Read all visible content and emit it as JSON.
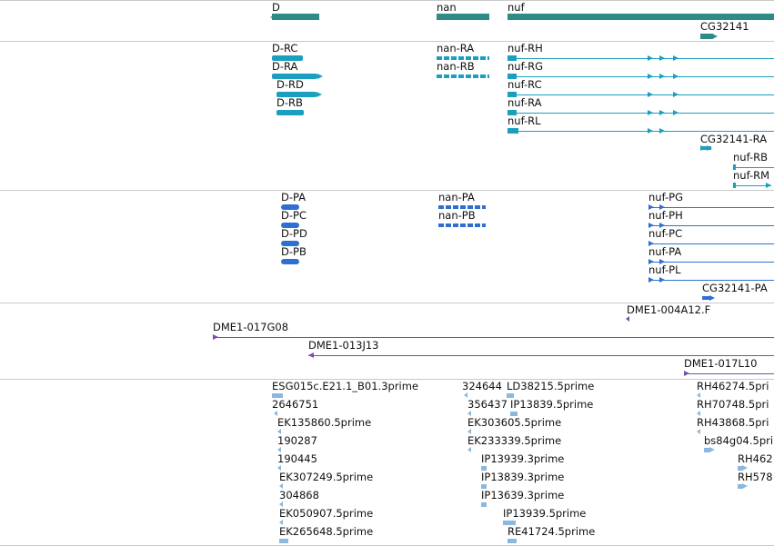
{
  "colors": {
    "gene": "#2e8b86",
    "transcript": "#1a9fbf",
    "protein": "#2f6fd0",
    "clone": "#7a4cb0",
    "est": "#8ab8de",
    "divider": "#c9c9c9"
  },
  "genes": {
    "d": "D",
    "nan": "nan",
    "nuf": "nuf",
    "cg32141": "CG32141"
  },
  "transcripts": {
    "d_rc": "D-RC",
    "d_ra": "D-RA",
    "d_rd": "D-RD",
    "d_rb": "D-RB",
    "nan_ra": "nan-RA",
    "nan_rb": "nan-RB",
    "nuf_rh": "nuf-RH",
    "nuf_rg": "nuf-RG",
    "nuf_rc": "nuf-RC",
    "nuf_ra": "nuf-RA",
    "nuf_rl": "nuf-RL",
    "cg32141_ra": "CG32141-RA",
    "nuf_rb": "nuf-RB",
    "nuf_rm": "nuf-RM"
  },
  "proteins": {
    "d_pa": "D-PA",
    "d_pc": "D-PC",
    "d_pd": "D-PD",
    "d_pb": "D-PB",
    "nan_pa": "nan-PA",
    "nan_pb": "nan-PB",
    "nuf_pg": "nuf-PG",
    "nuf_ph": "nuf-PH",
    "nuf_pc": "nuf-PC",
    "nuf_pa": "nuf-PA",
    "nuf_pl": "nuf-PL",
    "cg32141_pa": "CG32141-PA"
  },
  "clones": {
    "c1": "DME1-004A12.F",
    "c2": "DME1-017G08",
    "c3": "DME1-013J13",
    "c4": "DME1-017L10"
  },
  "ests": {
    "e1": "ESG015c.E21.1_B01.3prime",
    "e2": "2646751",
    "e3": "EK135860.5prime",
    "e4": "190287",
    "e5": "190445",
    "e6": "EK307249.5prime",
    "e7": "304868",
    "e8": "EK050907.5prime",
    "e9": "EK265648.5prime",
    "e10": "324644",
    "e11": "LD38215.5prime",
    "e12": "356437",
    "e13": "IP13839.5prime",
    "e14": "EK303605.5prime",
    "e15": "EK233339.5prime",
    "e16": "IP13939.3prime",
    "e17": "IP13839.3prime",
    "e18": "IP13639.3prime",
    "e19": "IP13939.5prime",
    "e20": "RE41724.5prime",
    "e21": "RH46274.5pri",
    "e22": "RH70748.5pri",
    "e23": "RH43868.5pri",
    "e24": "bs84g04.5pri",
    "e25": "RH462",
    "e26": "RH578"
  }
}
